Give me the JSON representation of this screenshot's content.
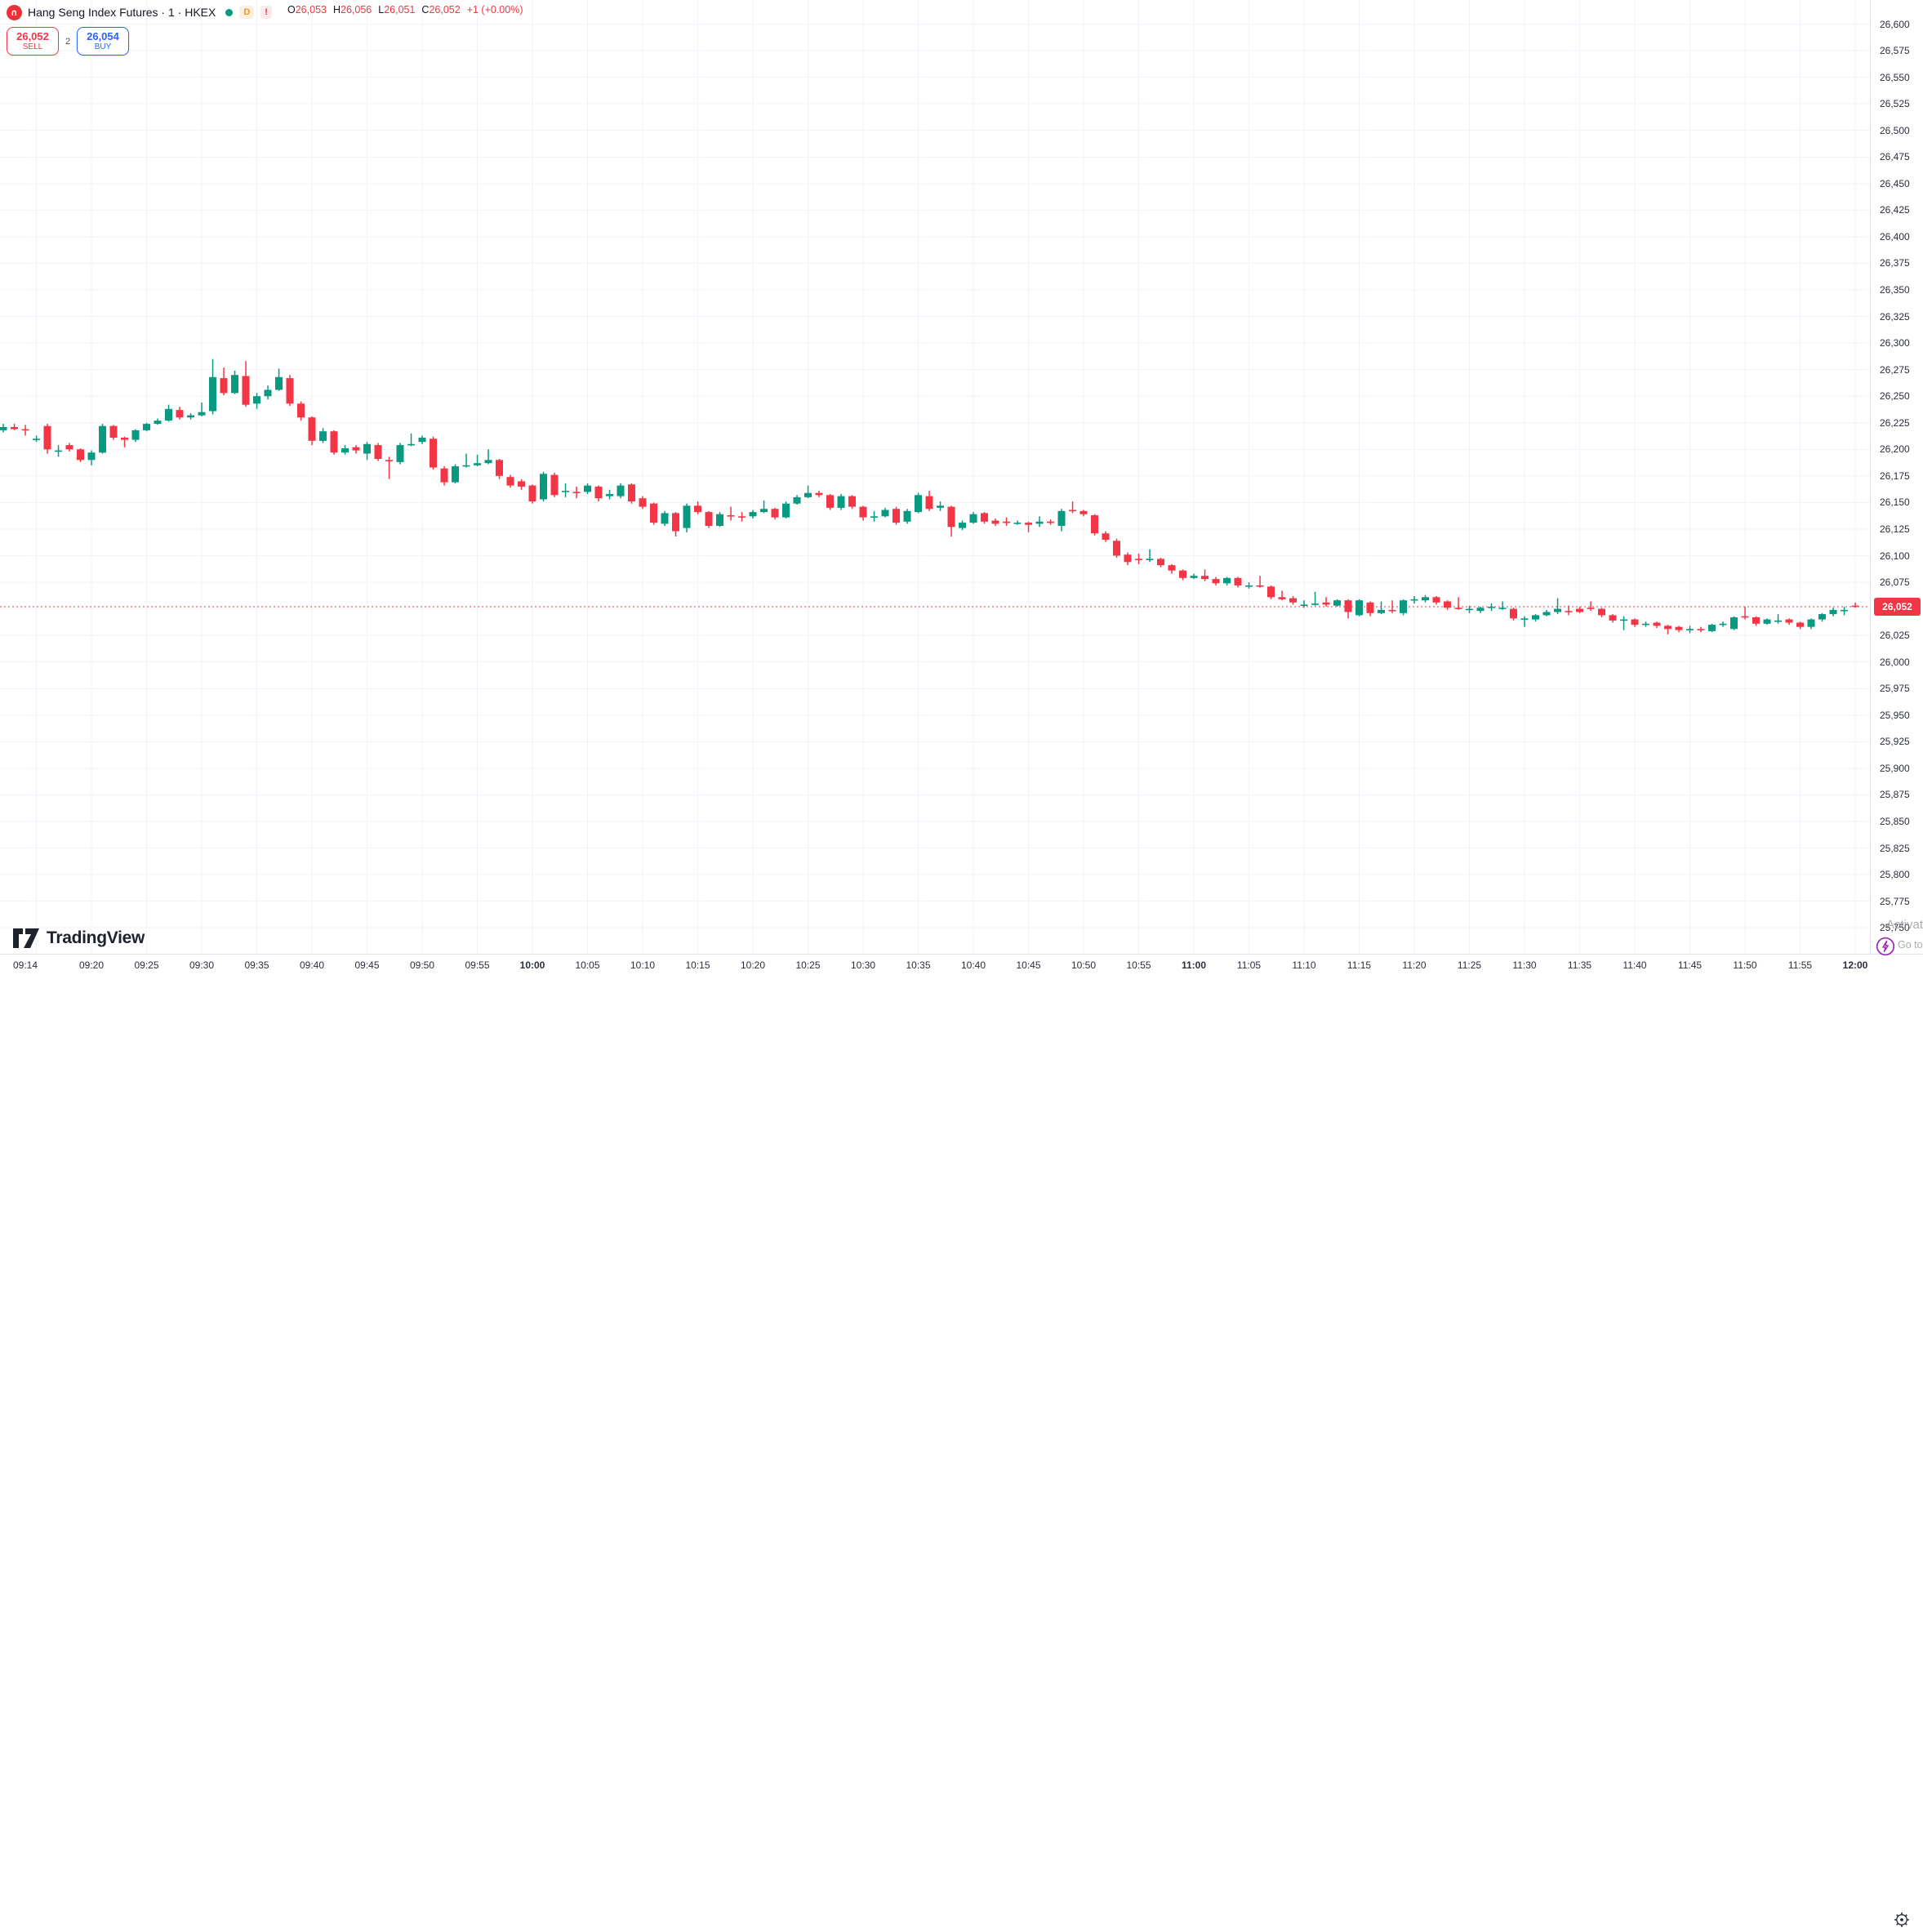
{
  "header": {
    "symbol_logo_glyph": "∩",
    "title": "Hang Seng Index Futures · 1 · HKEX",
    "interval_badge": "D",
    "alert_badge": "!",
    "ohlc": {
      "o_label": "O",
      "o_value": "26,053",
      "h_label": "H",
      "h_value": "26,056",
      "l_label": "L",
      "l_value": "26,051",
      "c_label": "C",
      "c_value": "26,052",
      "change": "+1 (+0.00%)"
    }
  },
  "order_panel": {
    "sell_price": "26,052",
    "sell_label": "SELL",
    "spread": "2",
    "buy_price": "26,054",
    "buy_label": "BUY"
  },
  "tv_logo_text": "TradingView",
  "windows_watermark": {
    "line1": "Activate W",
    "line2": "Go to Se"
  },
  "price_axis": {
    "labels": [
      "26,600",
      "26,575",
      "26,550",
      "26,525",
      "26,500",
      "26,475",
      "26,450",
      "26,425",
      "26,400",
      "26,375",
      "26,350",
      "26,325",
      "26,300",
      "26,275",
      "26,250",
      "26,225",
      "26,200",
      "26,175",
      "26,150",
      "26,125",
      "26,100",
      "26,075",
      "26,025",
      "26,000",
      "25,975",
      "25,950",
      "25,925",
      "25,900",
      "25,875",
      "25,850",
      "25,825",
      "25,800",
      "25,775",
      "25,750"
    ],
    "last_price_label": "26,052"
  },
  "time_axis": {
    "labels": [
      "09:14",
      "09:20",
      "09:25",
      "09:30",
      "09:35",
      "09:40",
      "09:45",
      "09:50",
      "09:55",
      "10:00",
      "10:05",
      "10:10",
      "10:15",
      "10:20",
      "10:25",
      "10:30",
      "10:35",
      "10:40",
      "10:45",
      "10:50",
      "10:55",
      "11:00",
      "11:05",
      "11:10",
      "11:15",
      "11:20",
      "11:25",
      "11:30",
      "11:35",
      "11:40",
      "11:45",
      "11:50",
      "11:55",
      "12:00"
    ],
    "bold_labels": [
      "10:00",
      "11:00",
      "12:00"
    ]
  },
  "chart_data": {
    "type": "candlestick",
    "title": "Hang Seng Index Futures",
    "exchange": "HKEX",
    "interval": "1",
    "start_time": "09:12",
    "interval_minutes": 1,
    "ylim": [
      25750,
      26600
    ],
    "y_step": 25,
    "last_price": 26052,
    "grid": true,
    "color_up": "#089981",
    "color_down": "#f23645",
    "candles_format": [
      "open",
      "high",
      "low",
      "close"
    ],
    "candles": [
      [
        26218,
        26224,
        26216,
        26221
      ],
      [
        26221,
        26224,
        26218,
        26219
      ],
      [
        26219,
        26223,
        26213,
        26218
      ],
      [
        26210,
        26213,
        26207,
        26210
      ],
      [
        26222,
        26224,
        26196,
        26200
      ],
      [
        26199,
        26204,
        26193,
        26199
      ],
      [
        26204,
        26206,
        26198,
        26200
      ],
      [
        26200,
        26201,
        26188,
        26190
      ],
      [
        26190,
        26199,
        26185,
        26197
      ],
      [
        26197,
        26224,
        26196,
        26222
      ],
      [
        26222,
        26223,
        26209,
        26211
      ],
      [
        26211,
        26212,
        26202,
        26209
      ],
      [
        26209,
        26219,
        26207,
        26218
      ],
      [
        26218,
        26225,
        26217,
        26224
      ],
      [
        26224,
        26229,
        26223,
        26227
      ],
      [
        26227,
        26242,
        26226,
        26238
      ],
      [
        26237,
        26240,
        26228,
        26230
      ],
      [
        26230,
        26234,
        26228,
        26232
      ],
      [
        26232,
        26244,
        26231,
        26235
      ],
      [
        26236,
        26285,
        26233,
        26268
      ],
      [
        26267,
        26277,
        26251,
        26253
      ],
      [
        26253,
        26274,
        26252,
        26270
      ],
      [
        26269,
        26283,
        26240,
        26242
      ],
      [
        26243,
        26253,
        26238,
        26250
      ],
      [
        26250,
        26260,
        26247,
        26256
      ],
      [
        26256,
        26276,
        26255,
        26268
      ],
      [
        26267,
        26270,
        26241,
        26243
      ],
      [
        26243,
        26245,
        26227,
        26230
      ],
      [
        26230,
        26231,
        26204,
        26208
      ],
      [
        26208,
        26220,
        26206,
        26217
      ],
      [
        26217,
        26218,
        26195,
        26197
      ],
      [
        26197,
        26204,
        26195,
        26201
      ],
      [
        26202,
        26204,
        26196,
        26199
      ],
      [
        26196,
        26207,
        26190,
        26205
      ],
      [
        26204,
        26206,
        26189,
        26191
      ],
      [
        26190,
        26193,
        26172,
        26189
      ],
      [
        26188,
        26206,
        26186,
        26204
      ],
      [
        26205,
        26215,
        26203,
        26205
      ],
      [
        26207,
        26213,
        26205,
        26211
      ],
      [
        26210,
        26212,
        26181,
        26183
      ],
      [
        26182,
        26184,
        26166,
        26169
      ],
      [
        26169,
        26186,
        26168,
        26184
      ],
      [
        26184,
        26196,
        26183,
        26185
      ],
      [
        26185,
        26195,
        26184,
        26187
      ],
      [
        26187,
        26200,
        26186,
        26190
      ],
      [
        26190,
        26191,
        26172,
        26175
      ],
      [
        26174,
        26176,
        26164,
        26166
      ],
      [
        26170,
        26172,
        26162,
        26165
      ],
      [
        26166,
        26167,
        26149,
        26151
      ],
      [
        26153,
        26179,
        26151,
        26177
      ],
      [
        26176,
        26178,
        26155,
        26157
      ],
      [
        26161,
        26168,
        26155,
        26161
      ],
      [
        26160,
        26165,
        26154,
        26159
      ],
      [
        26160,
        26168,
        26158,
        26166
      ],
      [
        26165,
        26166,
        26151,
        26154
      ],
      [
        26156,
        26162,
        26153,
        26158
      ],
      [
        26156,
        26168,
        26154,
        26166
      ],
      [
        26167,
        26168,
        26149,
        26151
      ],
      [
        26154,
        26156,
        26144,
        26146
      ],
      [
        26149,
        26150,
        26129,
        26131
      ],
      [
        26130,
        26142,
        26128,
        26140
      ],
      [
        26140,
        26141,
        26118,
        26123
      ],
      [
        26126,
        26149,
        26122,
        26147
      ],
      [
        26147,
        26151,
        26139,
        26141
      ],
      [
        26141,
        26142,
        26126,
        26128
      ],
      [
        26128,
        26141,
        26127,
        26139
      ],
      [
        26138,
        26146,
        26133,
        26137
      ],
      [
        26137,
        26141,
        26132,
        26136
      ],
      [
        26137,
        26143,
        26135,
        26141
      ],
      [
        26141,
        26152,
        26140,
        26144
      ],
      [
        26144,
        26145,
        26134,
        26136
      ],
      [
        26136,
        26151,
        26135,
        26149
      ],
      [
        26149,
        26157,
        26148,
        26155
      ],
      [
        26155,
        26166,
        26154,
        26159
      ],
      [
        26159,
        26161,
        26155,
        26157
      ],
      [
        26157,
        26158,
        26143,
        26145
      ],
      [
        26145,
        26158,
        26143,
        26156
      ],
      [
        26156,
        26157,
        26144,
        26146
      ],
      [
        26146,
        26147,
        26133,
        26136
      ],
      [
        26136,
        26142,
        26132,
        26137
      ],
      [
        26137,
        26145,
        26136,
        26143
      ],
      [
        26144,
        26146,
        26129,
        26131
      ],
      [
        26132,
        26144,
        26130,
        26142
      ],
      [
        26141,
        26159,
        26140,
        26157
      ],
      [
        26156,
        26161,
        26142,
        26144
      ],
      [
        26145,
        26151,
        26142,
        26147
      ],
      [
        26146,
        26147,
        26118,
        26127
      ],
      [
        26126,
        26133,
        26124,
        26131
      ],
      [
        26131,
        26141,
        26130,
        26139
      ],
      [
        26140,
        26141,
        26130,
        26132
      ],
      [
        26133,
        26135,
        26128,
        26130
      ],
      [
        26132,
        26136,
        26128,
        26131
      ],
      [
        26131,
        26133,
        26129,
        26131
      ],
      [
        26131,
        26132,
        26122,
        26129
      ],
      [
        26130,
        26137,
        26127,
        26132
      ],
      [
        26132,
        26134,
        26129,
        26131
      ],
      [
        26128,
        26144,
        26123,
        26142
      ],
      [
        26143,
        26151,
        26140,
        26142
      ],
      [
        26142,
        26143,
        26137,
        26139
      ],
      [
        26138,
        26139,
        26119,
        26121
      ],
      [
        26121,
        26123,
        26113,
        26115
      ],
      [
        26114,
        26116,
        26098,
        26100
      ],
      [
        26101,
        26103,
        26091,
        26094
      ],
      [
        26097,
        26102,
        26092,
        26096
      ],
      [
        26096,
        26106,
        26094,
        26097
      ],
      [
        26097,
        26098,
        26089,
        26091
      ],
      [
        26091,
        26092,
        26083,
        26086
      ],
      [
        26086,
        26087,
        26077,
        26079
      ],
      [
        26079,
        26083,
        26078,
        26081
      ],
      [
        26081,
        26087,
        26076,
        26078
      ],
      [
        26078,
        26080,
        26072,
        26074
      ],
      [
        26074,
        26080,
        26072,
        26079
      ],
      [
        26079,
        26080,
        26070,
        26072
      ],
      [
        26072,
        26075,
        26069,
        26072
      ],
      [
        26072,
        26081,
        26070,
        26071
      ],
      [
        26071,
        26072,
        26059,
        26061
      ],
      [
        26061,
        26067,
        26058,
        26059
      ],
      [
        26060,
        26062,
        26054,
        26056
      ],
      [
        26053,
        26058,
        26051,
        26054
      ],
      [
        26054,
        26066,
        26053,
        26055
      ],
      [
        26056,
        26061,
        26052,
        26054
      ],
      [
        26053,
        26059,
        26052,
        26058
      ],
      [
        26058,
        26059,
        26041,
        26047
      ],
      [
        26044,
        26059,
        26043,
        26058
      ],
      [
        26056,
        26057,
        26043,
        26046
      ],
      [
        26046,
        26057,
        26045,
        26049
      ],
      [
        26049,
        26058,
        26046,
        26048
      ],
      [
        26046,
        26059,
        26044,
        26058
      ],
      [
        26058,
        26062,
        26055,
        26059
      ],
      [
        26058,
        26063,
        26056,
        26061
      ],
      [
        26061,
        26062,
        26054,
        26056
      ],
      [
        26057,
        26058,
        26049,
        26051
      ],
      [
        26051,
        26061,
        26049,
        26050
      ],
      [
        26049,
        26053,
        26046,
        26050
      ],
      [
        26048,
        26052,
        26046,
        26051
      ],
      [
        26051,
        26055,
        26048,
        26052
      ],
      [
        26051,
        26057,
        26049,
        26051
      ],
      [
        26050,
        26051,
        26039,
        26041
      ],
      [
        26041,
        26043,
        26033,
        26041
      ],
      [
        26040,
        26045,
        26038,
        26044
      ],
      [
        26044,
        26049,
        26043,
        26047
      ],
      [
        26047,
        26060,
        26045,
        26050
      ],
      [
        26048,
        26053,
        26044,
        26047
      ],
      [
        26050,
        26052,
        26046,
        26047
      ],
      [
        26051,
        26057,
        26048,
        26050
      ],
      [
        26050,
        26051,
        26042,
        26044
      ],
      [
        26044,
        26045,
        26037,
        26039
      ],
      [
        26039,
        26043,
        26030,
        26040
      ],
      [
        26040,
        26041,
        26033,
        26035
      ],
      [
        26035,
        26038,
        26033,
        26036
      ],
      [
        26037,
        26038,
        26032,
        26034
      ],
      [
        26034,
        26035,
        26026,
        26031
      ],
      [
        26033,
        26034,
        26028,
        26030
      ],
      [
        26030,
        26034,
        26027,
        26031
      ],
      [
        26031,
        26033,
        26028,
        26030
      ],
      [
        26029,
        26036,
        26028,
        26035
      ],
      [
        26035,
        26038,
        26033,
        26036
      ],
      [
        26031,
        26043,
        26030,
        26042
      ],
      [
        26043,
        26052,
        26040,
        26042
      ],
      [
        26042,
        26043,
        26034,
        26036
      ],
      [
        26036,
        26041,
        26035,
        26040
      ],
      [
        26038,
        26045,
        26036,
        26039
      ],
      [
        26040,
        26041,
        26035,
        26037
      ],
      [
        26037,
        26038,
        26031,
        26033
      ],
      [
        26033,
        26041,
        26031,
        26040
      ],
      [
        26040,
        26046,
        26038,
        26045
      ],
      [
        26045,
        26051,
        26043,
        26049
      ],
      [
        26049,
        26052,
        26044,
        26049
      ],
      [
        26053,
        26056,
        26051,
        26052
      ]
    ]
  }
}
